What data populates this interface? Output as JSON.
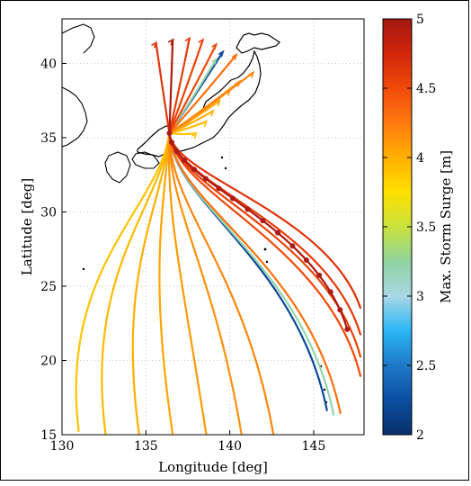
{
  "chart_data": {
    "type": "line",
    "title": "",
    "xlabel": "Longitude [deg]",
    "ylabel": "Latitude [deg]",
    "xlim": [
      130,
      148
    ],
    "ylim": [
      15,
      43
    ],
    "xticks": [
      130,
      135,
      140,
      145
    ],
    "yticks": [
      15,
      20,
      25,
      30,
      35,
      40
    ],
    "grid": true,
    "landfall_point": [
      136.4,
      35.3
    ],
    "track_direction": "southwest-to-northeast",
    "colorbar": {
      "label": "Max. Storm Surge [m]",
      "range": [
        2,
        5
      ],
      "ticks": [
        "2",
        "2.5",
        "3",
        "3.5",
        "4",
        "4.5",
        "5"
      ],
      "colors": [
        "#08306b",
        "#0b4ea2",
        "#1f78c8",
        "#29b6f6",
        "#a9d8e6",
        "#8fd3a0",
        "#c8e23c",
        "#ffe000",
        "#ffb000",
        "#ff7a10",
        "#f04a0a",
        "#d2260b",
        "#a31712"
      ]
    },
    "series": [
      {
        "surge": 3.9,
        "start": [
          131.0,
          15.2
        ],
        "end": [
          138.0,
          35.3
        ]
      },
      {
        "surge": 3.95,
        "start": [
          132.6,
          15.0
        ],
        "end": [
          138.6,
          36.1
        ]
      },
      {
        "surge": 4.0,
        "start": [
          134.6,
          15.0
        ],
        "end": [
          139.0,
          36.8
        ]
      },
      {
        "surge": 4.05,
        "start": [
          136.6,
          15.0
        ],
        "end": [
          139.4,
          37.5
        ]
      },
      {
        "surge": 4.1,
        "start": [
          138.6,
          15.0
        ],
        "end": [
          140.0,
          38.2
        ]
      },
      {
        "surge": 4.15,
        "start": [
          140.7,
          15.0
        ],
        "end": [
          140.6,
          38.8
        ]
      },
      {
        "surge": 4.2,
        "start": [
          142.6,
          15.0
        ],
        "end": [
          141.4,
          39.4
        ]
      },
      {
        "surge": 3.2,
        "start": [
          146.2,
          16.3
        ],
        "end": [
          139.2,
          40.3
        ]
      },
      {
        "surge": 2.2,
        "start": [
          145.8,
          16.6
        ],
        "end": [
          139.6,
          40.8
        ]
      },
      {
        "surge": 4.3,
        "start": [
          146.6,
          16.4
        ],
        "end": [
          140.4,
          40.6
        ]
      },
      {
        "surge": 4.5,
        "start": [
          147.8,
          18.9
        ],
        "end": [
          139.2,
          41.3
        ]
      },
      {
        "surge": 4.55,
        "start": [
          147.8,
          20.2
        ],
        "end": [
          138.4,
          41.6
        ]
      },
      {
        "surge": 4.6,
        "start": [
          147.8,
          21.7
        ],
        "end": [
          137.6,
          41.7
        ]
      },
      {
        "surge": 4.95,
        "start": [
          147.0,
          22.1
        ],
        "end": [
          136.6,
          41.6
        ]
      },
      {
        "surge": 4.65,
        "start": [
          147.8,
          23.5
        ],
        "end": [
          135.6,
          41.4
        ]
      }
    ]
  }
}
